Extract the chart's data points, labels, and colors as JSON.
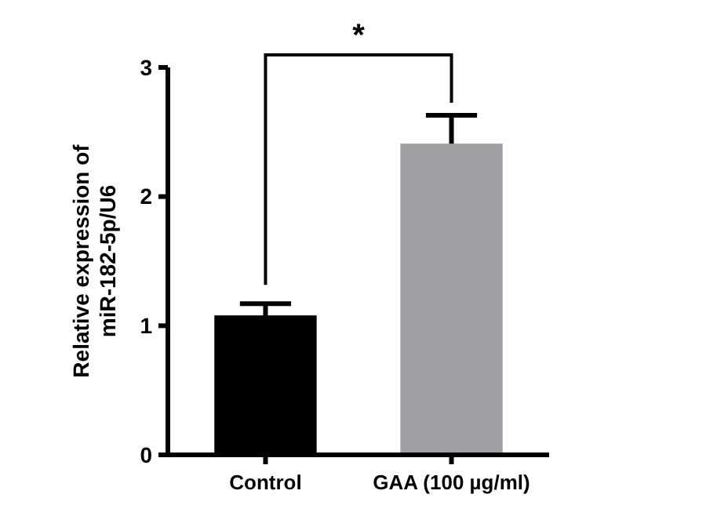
{
  "chart_data": {
    "type": "bar",
    "ylabel": "Relative expression of\nmiR-182-5p/U6",
    "categories": [
      "Control",
      "GAA (100 µg/ml)"
    ],
    "values": [
      1.08,
      2.41
    ],
    "colors": [
      "#000000",
      "#a0a0a4"
    ],
    "errors": [
      0.09,
      0.22
    ],
    "ylim": [
      0,
      3
    ],
    "yticks": [
      0,
      1,
      2,
      3
    ],
    "grid": false,
    "annotations": [
      "*"
    ]
  }
}
